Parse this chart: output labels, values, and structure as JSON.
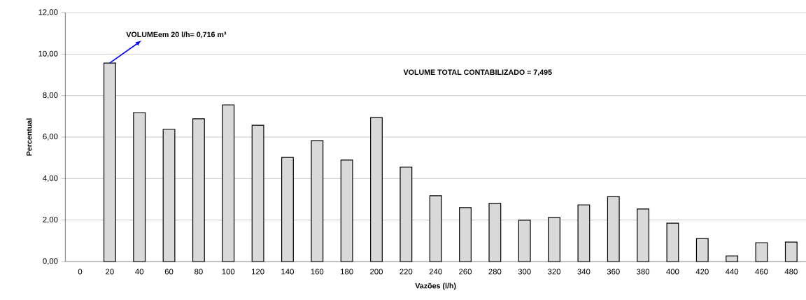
{
  "chart_data": {
    "type": "bar",
    "xlabel": "Vazões (l/h)",
    "ylabel": "Percentual",
    "categories": [
      "0",
      "20",
      "40",
      "60",
      "80",
      "100",
      "120",
      "140",
      "160",
      "180",
      "200",
      "220",
      "240",
      "260",
      "280",
      "300",
      "320",
      "340",
      "360",
      "380",
      "400",
      "420",
      "440",
      "460",
      "480"
    ],
    "values": [
      null,
      9.57,
      7.18,
      6.37,
      6.88,
      7.55,
      6.57,
      5.02,
      5.83,
      4.89,
      6.94,
      4.55,
      3.17,
      2.6,
      2.8,
      1.99,
      2.12,
      2.73,
      3.13,
      2.53,
      1.85,
      1.11,
      0.27,
      0.91,
      0.94
    ],
    "color": "#d9d9d9",
    "ylim": [
      0,
      12
    ],
    "yticks": [
      {
        "value": 0,
        "label": "0,00"
      },
      {
        "value": 2,
        "label": "2,00"
      },
      {
        "value": 4,
        "label": "4,00"
      },
      {
        "value": 6,
        "label": "6,00"
      },
      {
        "value": 8,
        "label": "8,00"
      },
      {
        "value": 10,
        "label": "10,00"
      },
      {
        "value": 12,
        "label": "12,00"
      }
    ],
    "grid": "y",
    "annotations": [
      {
        "text": "VOLUMEem 20 l/h= 0,716 m³",
        "x": "20",
        "y": 9.57
      },
      "VOLUME TOTAL CONTABILIZADO = 7,495"
    ]
  }
}
